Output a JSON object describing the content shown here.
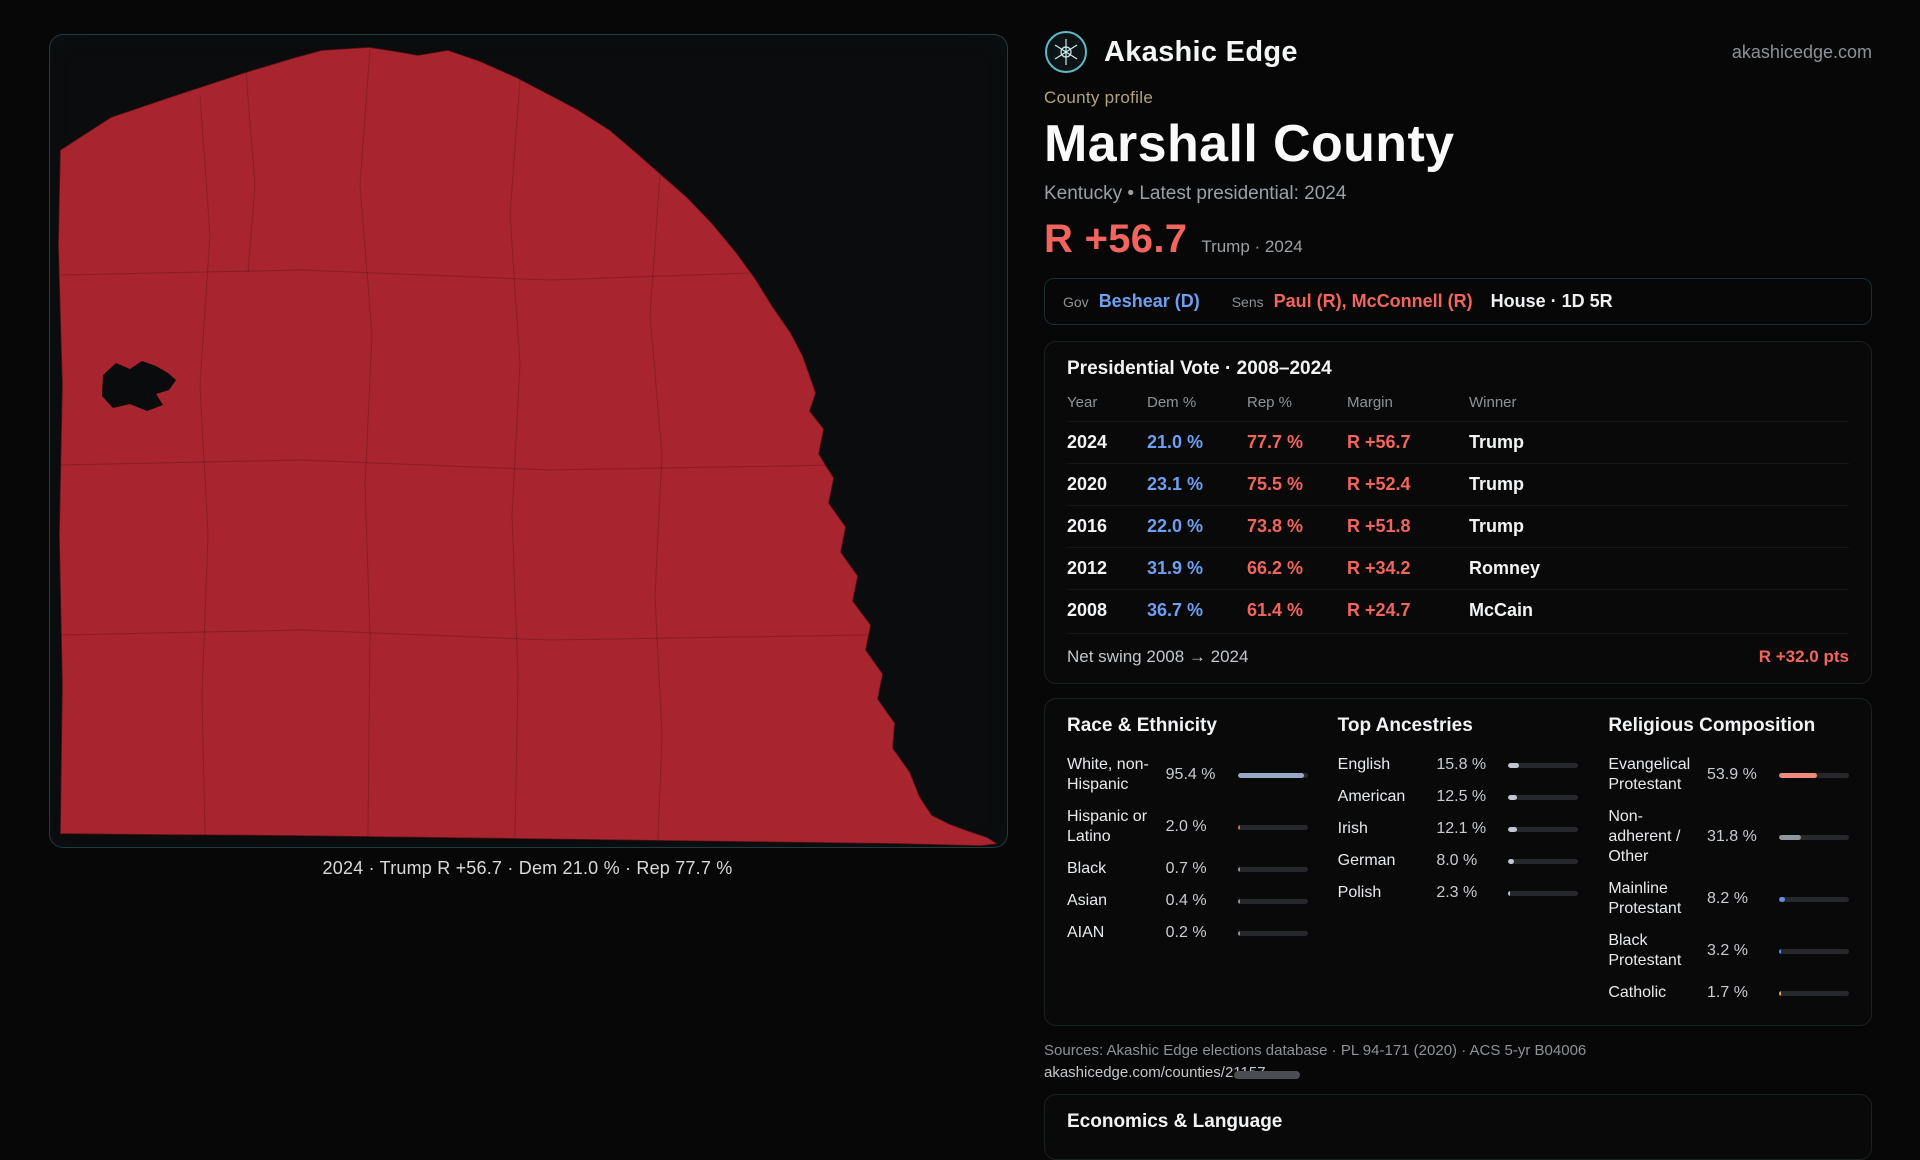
{
  "colors": {
    "rep": "#f2655e",
    "dem": "#6f9ff0",
    "map-fill": "#a8242e",
    "kicker": "#b5a47b"
  },
  "brand": {
    "name": "Akashic Edge",
    "domain": "akashicedge.com"
  },
  "profile": {
    "kicker": "County profile",
    "title": "Marshall County",
    "subtitle": "Kentucky • Latest presidential: 2024",
    "margin_big": "R +56.7",
    "margin_note": "Trump · 2024"
  },
  "officials": {
    "gov_label": "Gov",
    "gov": "Beshear (D)",
    "sens_label": "Sens",
    "sens": "Paul (R), McConnell (R)",
    "house": "House · 1D 5R"
  },
  "map": {
    "caption": "2024 · Trump R +56.7 · Dem 21.0 % · Rep 77.7 %"
  },
  "vote_table": {
    "title": "Presidential Vote · 2008–2024",
    "columns": [
      "Year",
      "Dem %",
      "Rep %",
      "Margin",
      "Winner"
    ],
    "rows": [
      {
        "year": "2024",
        "dem": "21.0 %",
        "rep": "77.7 %",
        "margin": "R +56.7",
        "winner": "Trump"
      },
      {
        "year": "2020",
        "dem": "23.1 %",
        "rep": "75.5 %",
        "margin": "R +52.4",
        "winner": "Trump"
      },
      {
        "year": "2016",
        "dem": "22.0 %",
        "rep": "73.8 %",
        "margin": "R +51.8",
        "winner": "Trump"
      },
      {
        "year": "2012",
        "dem": "31.9 %",
        "rep": "66.2 %",
        "margin": "R +34.2",
        "winner": "Romney"
      },
      {
        "year": "2008",
        "dem": "36.7 %",
        "rep": "61.4 %",
        "margin": "R +24.7",
        "winner": "McCain"
      }
    ],
    "footer_label": "Net swing 2008 → 2024",
    "footer_value": "R +32.0 pts"
  },
  "demographics": {
    "race": {
      "title": "Race & Ethnicity",
      "rows": [
        {
          "label": "White, non-Hispanic",
          "value": "95.4 %",
          "pct": 95.4,
          "color": "#9aa8c8"
        },
        {
          "label": "Hispanic or Latino",
          "value": "2.0 %",
          "pct": 2.0,
          "color": "#e0645c"
        },
        {
          "label": "Black",
          "value": "0.7 %",
          "pct": 0.7,
          "color": "#8d929a"
        },
        {
          "label": "Asian",
          "value": "0.4 %",
          "pct": 0.4,
          "color": "#8d929a"
        },
        {
          "label": "AIAN",
          "value": "0.2 %",
          "pct": 0.2,
          "color": "#8d929a"
        }
      ]
    },
    "ancestry": {
      "title": "Top Ancestries",
      "rows": [
        {
          "label": "English",
          "value": "15.8 %",
          "pct": 15.8,
          "color": "#c3c8d0"
        },
        {
          "label": "American",
          "value": "12.5 %",
          "pct": 12.5,
          "color": "#c3c8d0"
        },
        {
          "label": "Irish",
          "value": "12.1 %",
          "pct": 12.1,
          "color": "#c3c8d0"
        },
        {
          "label": "German",
          "value": "8.0 %",
          "pct": 8.0,
          "color": "#c3c8d0"
        },
        {
          "label": "Polish",
          "value": "2.3 %",
          "pct": 2.3,
          "color": "#c3c8d0"
        }
      ]
    },
    "religion": {
      "title": "Religious Composition",
      "rows": [
        {
          "label": "Evangelical Protestant",
          "value": "53.9 %",
          "pct": 53.9,
          "color": "#ef8b7e"
        },
        {
          "label": "Non-adherent / Other",
          "value": "31.8 %",
          "pct": 31.8,
          "color": "#8f959c"
        },
        {
          "label": "Mainline Protestant",
          "value": "8.2 %",
          "pct": 8.2,
          "color": "#5f8fe8"
        },
        {
          "label": "Black Protestant",
          "value": "3.2 %",
          "pct": 3.2,
          "color": "#5f8fe8"
        },
        {
          "label": "Catholic",
          "value": "1.7 %",
          "pct": 1.7,
          "color": "#d9b24a"
        }
      ]
    }
  },
  "sources": {
    "line1": "Sources: Akashic Edge elections database · PL 94-171 (2020) · ACS 5-yr B04006",
    "line2": "akashicedge.com/counties/21157"
  },
  "bottom_panel": {
    "title": "Economics & Language"
  }
}
